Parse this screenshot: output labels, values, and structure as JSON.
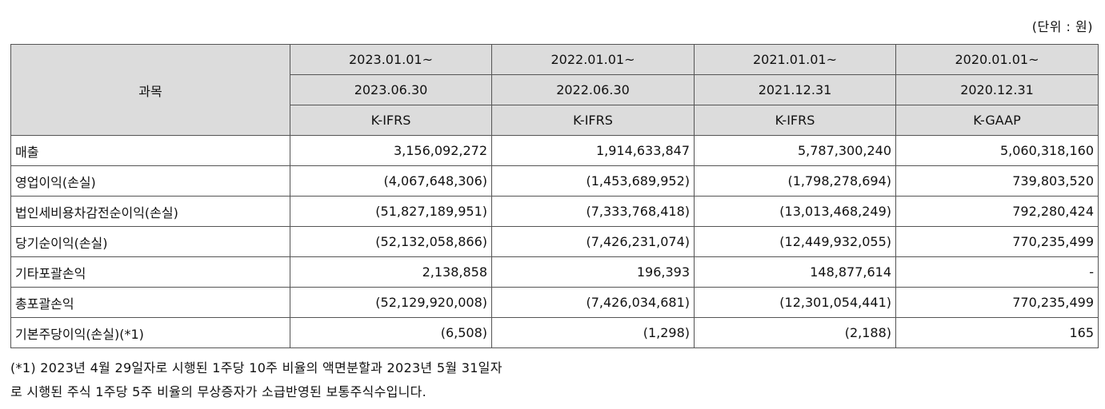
{
  "unit_label": "(단위 : 원)",
  "table": {
    "subject_header": "과목",
    "periods": [
      {
        "start": "2023.01.01~",
        "end": "2023.06.30",
        "standard": "K-IFRS"
      },
      {
        "start": "2022.01.01~",
        "end": "2022.06.30",
        "standard": "K-IFRS"
      },
      {
        "start": "2021.01.01~",
        "end": "2021.12.31",
        "standard": "K-IFRS"
      },
      {
        "start": "2020.01.01~",
        "end": "2020.12.31",
        "standard": "K-GAAP"
      }
    ],
    "rows": [
      {
        "label": "매출",
        "values": [
          "3,156,092,272",
          "1,914,633,847",
          "5,787,300,240",
          "5,060,318,160"
        ]
      },
      {
        "label": "영업이익(손실)",
        "values": [
          "(4,067,648,306)",
          "(1,453,689,952)",
          "(1,798,278,694)",
          "739,803,520"
        ]
      },
      {
        "label": "법인세비용차감전순이익(손실)",
        "values": [
          "(51,827,189,951)",
          "(7,333,768,418)",
          "(13,013,468,249)",
          "792,280,424"
        ]
      },
      {
        "label": "당기순이익(손실)",
        "values": [
          "(52,132,058,866)",
          "(7,426,231,074)",
          "(12,449,932,055)",
          "770,235,499"
        ]
      },
      {
        "label": "기타포괄손익",
        "values": [
          "2,138,858",
          "196,393",
          "148,877,614",
          "-"
        ]
      },
      {
        "label": "총포괄손익",
        "values": [
          "(52,129,920,008)",
          "(7,426,034,681)",
          "(12,301,054,441)",
          "770,235,499"
        ]
      },
      {
        "label": "기본주당이익(손실)(*1)",
        "values": [
          "(6,508)",
          "(1,298)",
          "(2,188)",
          "165"
        ]
      }
    ]
  },
  "footnote": {
    "line1": "(*1) 2023년 4월 29일자로 시행된 1주당 10주 비율의 액면분할과 2023년 5월 31일자",
    "line2": "로 시행된 주식 1주당 5주 비율의 무상증자가 소급반영된 보통주식수입니다."
  }
}
